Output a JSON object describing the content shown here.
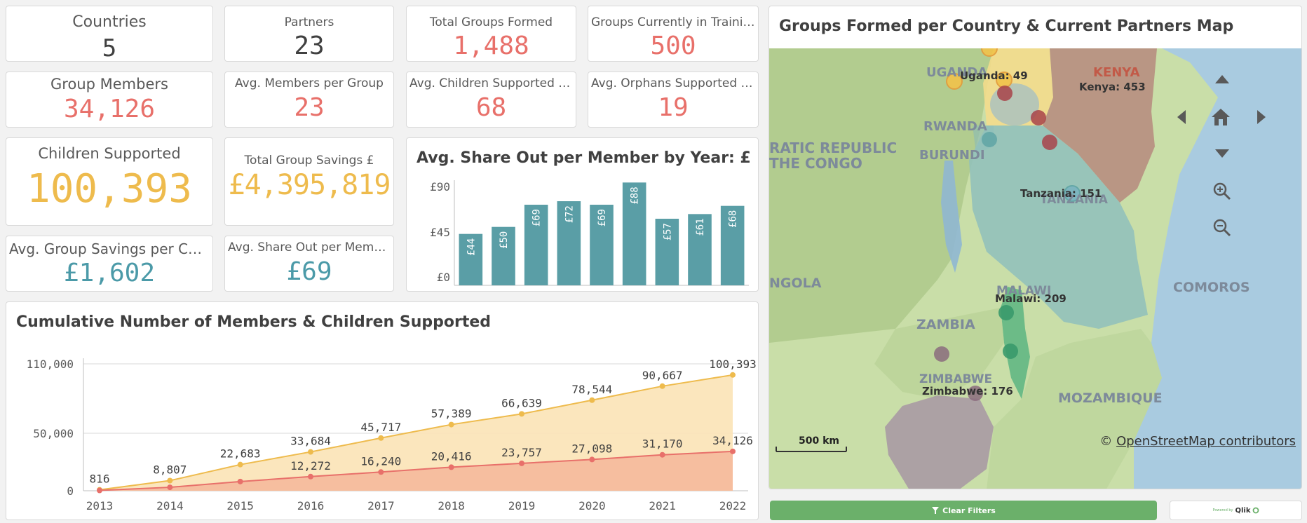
{
  "kpis": {
    "countries": {
      "label": "Countries",
      "value": "5"
    },
    "partners": {
      "label": "Partners",
      "value": "23"
    },
    "total_groups": {
      "label": "Total Groups Formed",
      "value": "1,488"
    },
    "groups_training": {
      "label": "Groups Currently in Training",
      "value": "500"
    },
    "group_members": {
      "label": "Group Members",
      "value": "34,126"
    },
    "avg_members": {
      "label": "Avg. Members per Group",
      "value": "23"
    },
    "avg_children": {
      "label": "Avg. Children Supported per G...",
      "value": "68"
    },
    "avg_orphans": {
      "label": "Avg. Orphans Supported per ...",
      "value": "19"
    },
    "children_supported": {
      "label": "Children Supported",
      "value": "100,393"
    },
    "total_savings": {
      "label": "Total Group Savings £",
      "value": "£4,395,819"
    },
    "avg_savings_cycle": {
      "label": "Avg. Group Savings per Cycle £",
      "value": "£1,602"
    },
    "avg_share_out": {
      "label": "Avg. Share Out per Member £",
      "value": "£69"
    }
  },
  "colors": {
    "red": "#e8706a",
    "gold": "#eebb4d",
    "teal": "#4b9aa8",
    "bar": "#5a9ea6",
    "green_button": "#6bb06a"
  },
  "share_chart": {
    "title": "Avg. Share Out per Member by Year: £",
    "y_ticks": [
      "£90",
      "£45",
      "£0"
    ]
  },
  "cumulative_chart": {
    "title": "Cumulative Number of Members & Children Supported",
    "y_ticks": [
      "110,000",
      "50,000",
      "0"
    ]
  },
  "chart_data": [
    {
      "type": "bar",
      "title": "Avg. Share Out per Member by Year: £",
      "ylim": [
        0,
        90
      ],
      "y_ticks": [
        0,
        45,
        90
      ],
      "values": [
        44,
        50,
        69,
        72,
        69,
        88,
        57,
        61,
        68
      ],
      "value_labels": [
        "£44",
        "£50",
        "£69",
        "£72",
        "£69",
        "£88",
        "£57",
        "£61",
        "£68"
      ]
    },
    {
      "type": "area",
      "title": "Cumulative Number of Members & Children Supported",
      "categories": [
        "2013",
        "2014",
        "2015",
        "2016",
        "2017",
        "2018",
        "2019",
        "2020",
        "2021",
        "2022"
      ],
      "ylim": [
        0,
        110000
      ],
      "y_ticks": [
        0,
        50000,
        110000
      ],
      "series": [
        {
          "values": [
            816,
            8807,
            22683,
            33684,
            45717,
            57389,
            66639,
            78544,
            90667,
            100393
          ],
          "labels": [
            "816",
            "8,807",
            "22,683",
            "33,684",
            "45,717",
            "57,389",
            "66,639",
            "78,544",
            "90,667",
            "100,393"
          ],
          "color": "#eebb4d"
        },
        {
          "values": [
            300,
            3000,
            8000,
            12272,
            16240,
            20416,
            23757,
            27098,
            31170,
            34126
          ],
          "labels": [
            "",
            "",
            "",
            "12,272",
            "16,240",
            "20,416",
            "23,757",
            "27,098",
            "31,170",
            "34,126"
          ],
          "color": "#e8706a"
        }
      ]
    }
  ],
  "map": {
    "title": "Groups Formed per Country & Current Partners Map",
    "labels": {
      "uganda": "UGANDA",
      "uganda_value": "Uganda: 49",
      "kenya": "KENYA",
      "kenya_value": "Kenya: 453",
      "rwanda": "RWANDA",
      "burundi": "BURUNDI",
      "drc_1": "RATIC REPUBLIC",
      "drc_2": "THE CONGO",
      "tanzania": "TANZANIA",
      "tanzania_value": "Tanzania: 151",
      "angola": "NGOLA",
      "malawi": "MALAWI",
      "malawi_value": "Malawi: 209",
      "zambia": "ZAMBIA",
      "zimbabwe": "ZIMBABWE",
      "zimbabwe_value": "Zimbabwe: 176",
      "mozambique": "MOZAMBIQUE",
      "comoros": "COMOROS"
    },
    "scale": "500 km",
    "attribution_symbol": "©",
    "attribution": "OpenStreetMap contributors"
  },
  "footer": {
    "clear_filters": "Clear Filters",
    "qlik_small": "Powered by",
    "qlik": "Qlik"
  }
}
